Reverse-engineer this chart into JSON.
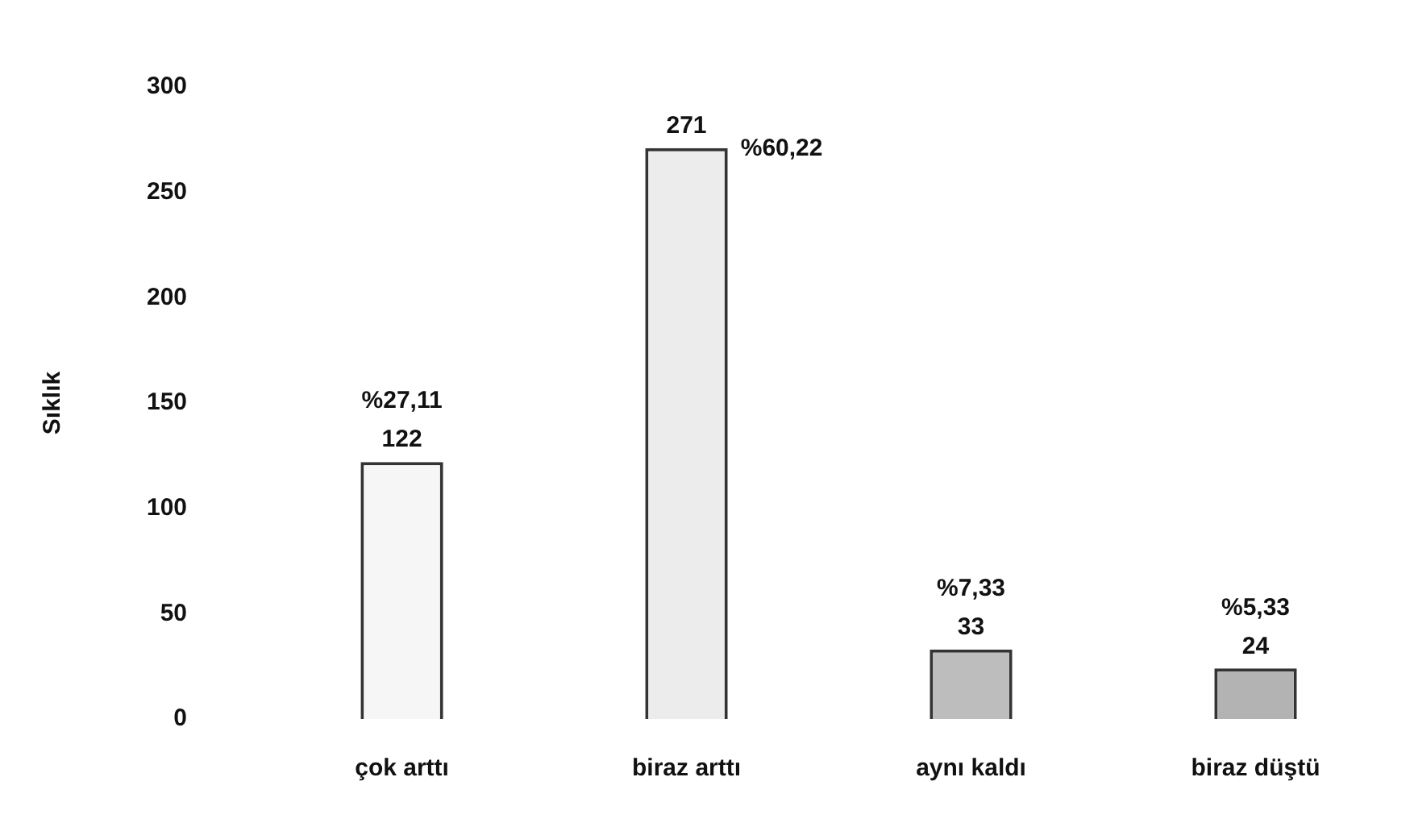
{
  "chart_data": {
    "type": "bar",
    "ylabel": "Sıklık",
    "categories": [
      "çok arttı",
      "biraz arttı",
      "aynı kaldı",
      "biraz düştü"
    ],
    "values": [
      122,
      271,
      33,
      24
    ],
    "colors": [
      "#f6f6f6",
      "#ececec",
      "#bdbdbd",
      "#b3b3b3"
    ],
    "ylim": [
      0,
      300
    ],
    "yticks": [
      0,
      50,
      100,
      150,
      200,
      250,
      300
    ],
    "grid": false,
    "legend": false,
    "data_labels": true,
    "annotations": [
      {
        "text": "%27,11",
        "x": "çok arttı",
        "y": 122
      },
      {
        "text": "%60,22",
        "x": "biraz arttı",
        "y": 271
      },
      {
        "text": "%7,33",
        "x": "aynı kaldı",
        "y": 33
      },
      {
        "text": "%5,33",
        "x": "biraz düştü",
        "y": 24
      }
    ]
  }
}
